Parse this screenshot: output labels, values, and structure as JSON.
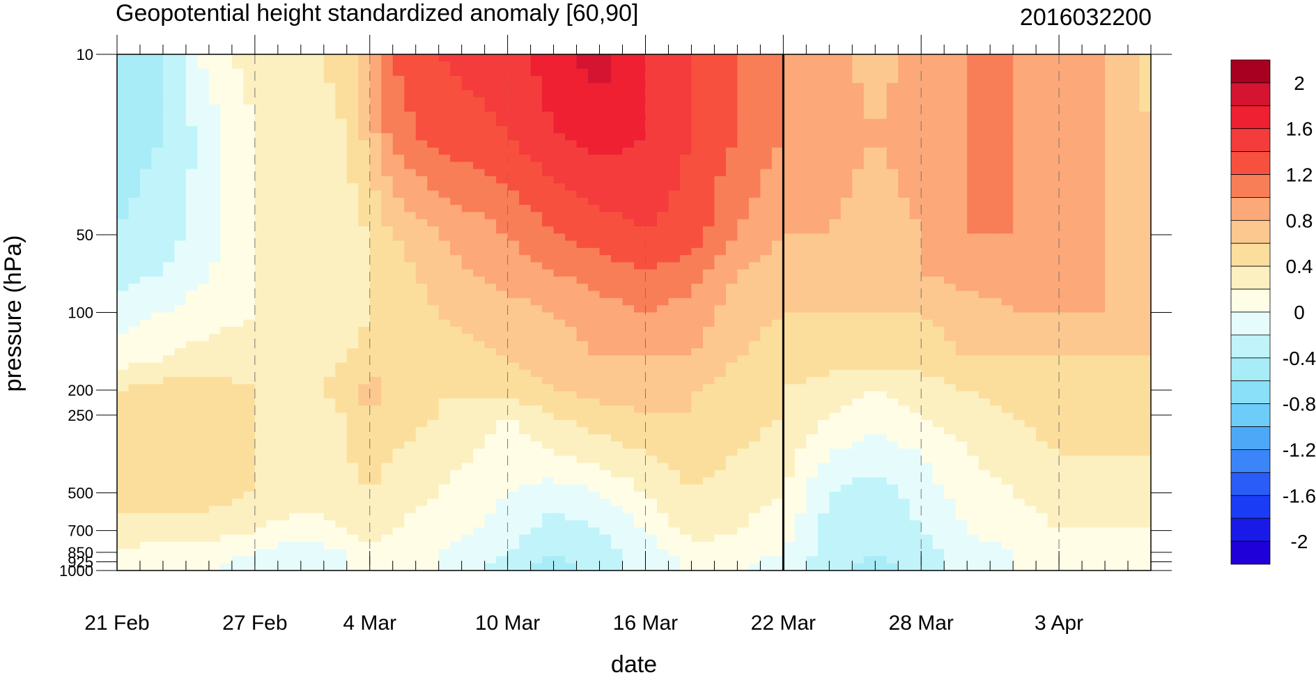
{
  "chart_data": {
    "type": "heatmap",
    "title": "Geopotential height standardized anomaly [60,90]",
    "subtitle_right": "2016032200",
    "xlabel": "date",
    "ylabel": "pressure (hPa)",
    "x_ticks": [
      "21 Feb",
      "27 Feb",
      "4 Mar",
      "10 Mar",
      "16 Mar",
      "22 Mar",
      "28 Mar",
      "3 Apr"
    ],
    "x_tick_days": [
      0,
      6,
      11,
      17,
      23,
      29,
      35,
      41
    ],
    "x_range_days": [
      0,
      45
    ],
    "y_ticks": [
      "10",
      "50",
      "100",
      "200",
      "250",
      "500",
      "700",
      "850",
      "925",
      "1000"
    ],
    "y_tick_values": [
      10,
      50,
      100,
      200,
      250,
      500,
      700,
      850,
      925,
      1000
    ],
    "y_scale": "log",
    "y_reversed": true,
    "current_date_line_day": 29,
    "colorbar": {
      "levels": [
        -2.2,
        -2.0,
        -1.8,
        -1.6,
        -1.4,
        -1.2,
        -1.0,
        -0.8,
        -0.6,
        -0.4,
        -0.2,
        0.0,
        0.2,
        0.4,
        0.6,
        0.8,
        1.0,
        1.2,
        1.4,
        1.6,
        1.8,
        2.0,
        2.2
      ],
      "labels": [
        "2",
        "1.6",
        "1.2",
        "0.8",
        "0.4",
        "0",
        "-0.4",
        "-0.8",
        "-1.2",
        "-1.6",
        "-2"
      ],
      "label_values": [
        2,
        1.6,
        1.2,
        0.8,
        0.4,
        0,
        -0.4,
        -0.8,
        -1.2,
        -1.6,
        -2
      ],
      "colors": [
        "#2000d8",
        "#1a1ae8",
        "#1a3cf5",
        "#2a5cf8",
        "#3a86f8",
        "#4ea8f8",
        "#6dcdf8",
        "#8ae0f8",
        "#a8ecf8",
        "#c0f4fa",
        "#e6fcfc",
        "#fffde6",
        "#fcf0c0",
        "#fcde9c",
        "#fcc890",
        "#fca878",
        "#f87e58",
        "#f8503e",
        "#f43c3c",
        "#ee2032",
        "#d41430",
        "#a80020"
      ]
    },
    "field": {
      "times": [
        0,
        2,
        4,
        6,
        8,
        10,
        11,
        12,
        14,
        17,
        19,
        21,
        23,
        25,
        27,
        29,
        31,
        33,
        35,
        37,
        39,
        41,
        43,
        45
      ],
      "levels_hPa": [
        10,
        20,
        50,
        70,
        100,
        150,
        200,
        250,
        350,
        500,
        700,
        850,
        1000
      ],
      "values": [
        [
          -0.6,
          -0.4,
          0.1,
          0.3,
          0.3,
          0.5,
          0.8,
          1.2,
          1.4,
          1.5,
          1.7,
          1.9,
          1.6,
          1.4,
          1.2,
          1.0,
          0.9,
          0.7,
          0.9,
          1.0,
          1.0,
          0.9,
          0.8,
          0.5
        ],
        [
          -0.5,
          -0.4,
          -0.1,
          0.2,
          0.3,
          0.4,
          0.7,
          1.1,
          1.3,
          1.4,
          1.6,
          1.7,
          1.6,
          1.4,
          1.2,
          1.0,
          0.9,
          0.8,
          0.9,
          1.0,
          1.0,
          0.9,
          0.8,
          0.6
        ],
        [
          -0.4,
          -0.3,
          -0.1,
          0.2,
          0.3,
          0.3,
          0.4,
          0.6,
          0.8,
          1.0,
          1.2,
          1.3,
          1.4,
          1.3,
          1.0,
          0.8,
          0.8,
          0.7,
          0.8,
          1.0,
          1.0,
          0.9,
          0.8,
          0.7
        ],
        [
          -0.3,
          -0.2,
          0.0,
          0.2,
          0.3,
          0.3,
          0.4,
          0.5,
          0.7,
          0.9,
          1.0,
          1.1,
          1.2,
          1.1,
          0.8,
          0.7,
          0.7,
          0.7,
          0.8,
          0.9,
          0.9,
          0.9,
          0.8,
          0.7
        ],
        [
          -0.1,
          0.0,
          0.1,
          0.2,
          0.3,
          0.3,
          0.4,
          0.4,
          0.6,
          0.7,
          0.8,
          0.9,
          1.0,
          0.9,
          0.7,
          0.6,
          0.6,
          0.6,
          0.6,
          0.7,
          0.8,
          0.8,
          0.8,
          0.7
        ],
        [
          0.1,
          0.2,
          0.3,
          0.3,
          0.3,
          0.4,
          0.5,
          0.5,
          0.5,
          0.6,
          0.7,
          0.8,
          0.8,
          0.8,
          0.6,
          0.5,
          0.5,
          0.5,
          0.5,
          0.6,
          0.6,
          0.6,
          0.6,
          0.6
        ],
        [
          0.4,
          0.5,
          0.5,
          0.4,
          0.3,
          0.5,
          0.7,
          0.5,
          0.4,
          0.5,
          0.6,
          0.7,
          0.7,
          0.6,
          0.5,
          0.4,
          0.3,
          0.2,
          0.3,
          0.4,
          0.5,
          0.5,
          0.5,
          0.5
        ],
        [
          0.4,
          0.5,
          0.5,
          0.4,
          0.3,
          0.4,
          0.6,
          0.5,
          0.4,
          0.2,
          0.4,
          0.5,
          0.6,
          0.6,
          0.5,
          0.4,
          0.2,
          0.1,
          0.2,
          0.3,
          0.4,
          0.5,
          0.5,
          0.5
        ],
        [
          0.5,
          0.5,
          0.5,
          0.4,
          0.3,
          0.4,
          0.5,
          0.4,
          0.3,
          0.1,
          0.2,
          0.3,
          0.4,
          0.5,
          0.4,
          0.3,
          0.0,
          -0.1,
          0.0,
          0.2,
          0.3,
          0.4,
          0.4,
          0.4
        ],
        [
          0.5,
          0.5,
          0.5,
          0.4,
          0.3,
          0.3,
          0.4,
          0.3,
          0.2,
          0.0,
          -0.1,
          0.0,
          0.2,
          0.4,
          0.3,
          0.2,
          -0.2,
          -0.3,
          -0.1,
          0.1,
          0.2,
          0.3,
          0.3,
          0.3
        ],
        [
          0.3,
          0.3,
          0.3,
          0.2,
          0.1,
          0.2,
          0.3,
          0.2,
          0.1,
          -0.1,
          -0.3,
          -0.2,
          0.0,
          0.3,
          0.2,
          0.1,
          -0.3,
          -0.4,
          -0.2,
          0.0,
          0.1,
          0.2,
          0.2,
          0.2
        ],
        [
          0.2,
          0.1,
          0.1,
          0.0,
          -0.2,
          0.0,
          0.1,
          0.1,
          0.0,
          -0.2,
          -0.4,
          -0.3,
          -0.1,
          0.1,
          0.1,
          0.0,
          -0.3,
          -0.4,
          -0.3,
          -0.1,
          0.0,
          0.1,
          0.1,
          0.1
        ],
        [
          0.0,
          0.0,
          0.0,
          -0.1,
          -0.2,
          0.0,
          0.1,
          0.0,
          0.0,
          -0.3,
          -0.5,
          -0.3,
          -0.1,
          0.0,
          0.0,
          -0.1,
          -0.3,
          -0.5,
          -0.3,
          -0.1,
          0.0,
          0.0,
          0.0,
          0.0
        ]
      ]
    }
  }
}
